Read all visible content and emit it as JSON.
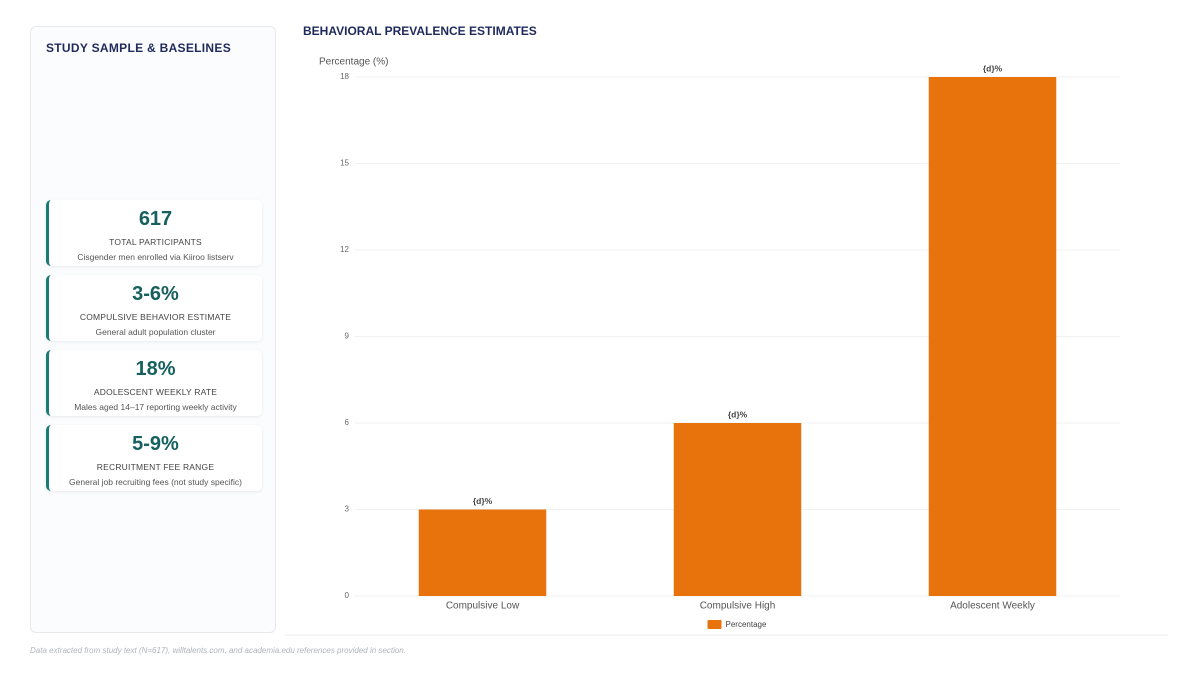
{
  "panel": {
    "title": "STUDY SAMPLE & BASELINES",
    "stats": [
      {
        "value": "617",
        "label": "TOTAL PARTICIPANTS",
        "note": "Cisgender men enrolled via Kiiroo listserv"
      },
      {
        "value": "3-6%",
        "label": "COMPULSIVE BEHAVIOR ESTIMATE",
        "note": "General adult population cluster"
      },
      {
        "value": "18%",
        "label": "ADOLESCENT WEEKLY RATE",
        "note": "Males aged 14–17 reporting weekly activity"
      },
      {
        "value": "5-9%",
        "label": "RECRUITMENT FEE RANGE",
        "note": "General job recruiting fees (not study specific)"
      }
    ]
  },
  "chart_data": {
    "type": "bar",
    "title": "BEHAVIORAL PREVALENCE ESTIMATES",
    "y_label": "Percentage (%)",
    "categories": [
      "Compulsive Low",
      "Compulsive High",
      "Adolescent Weekly"
    ],
    "series": [
      {
        "name": "Percentage",
        "color": "#e8720c",
        "values": [
          3,
          6,
          18
        ],
        "value_labels": [
          "{d}%",
          "{d}%",
          "{d}%"
        ]
      }
    ],
    "ylim": [
      0,
      18
    ],
    "yticks": [
      0,
      3,
      6,
      9,
      12,
      15,
      18
    ],
    "grid": true,
    "legend": "bottom"
  },
  "footer": "Data extracted from study text (N=617), willtalents.com, and academia.edu references provided in section."
}
